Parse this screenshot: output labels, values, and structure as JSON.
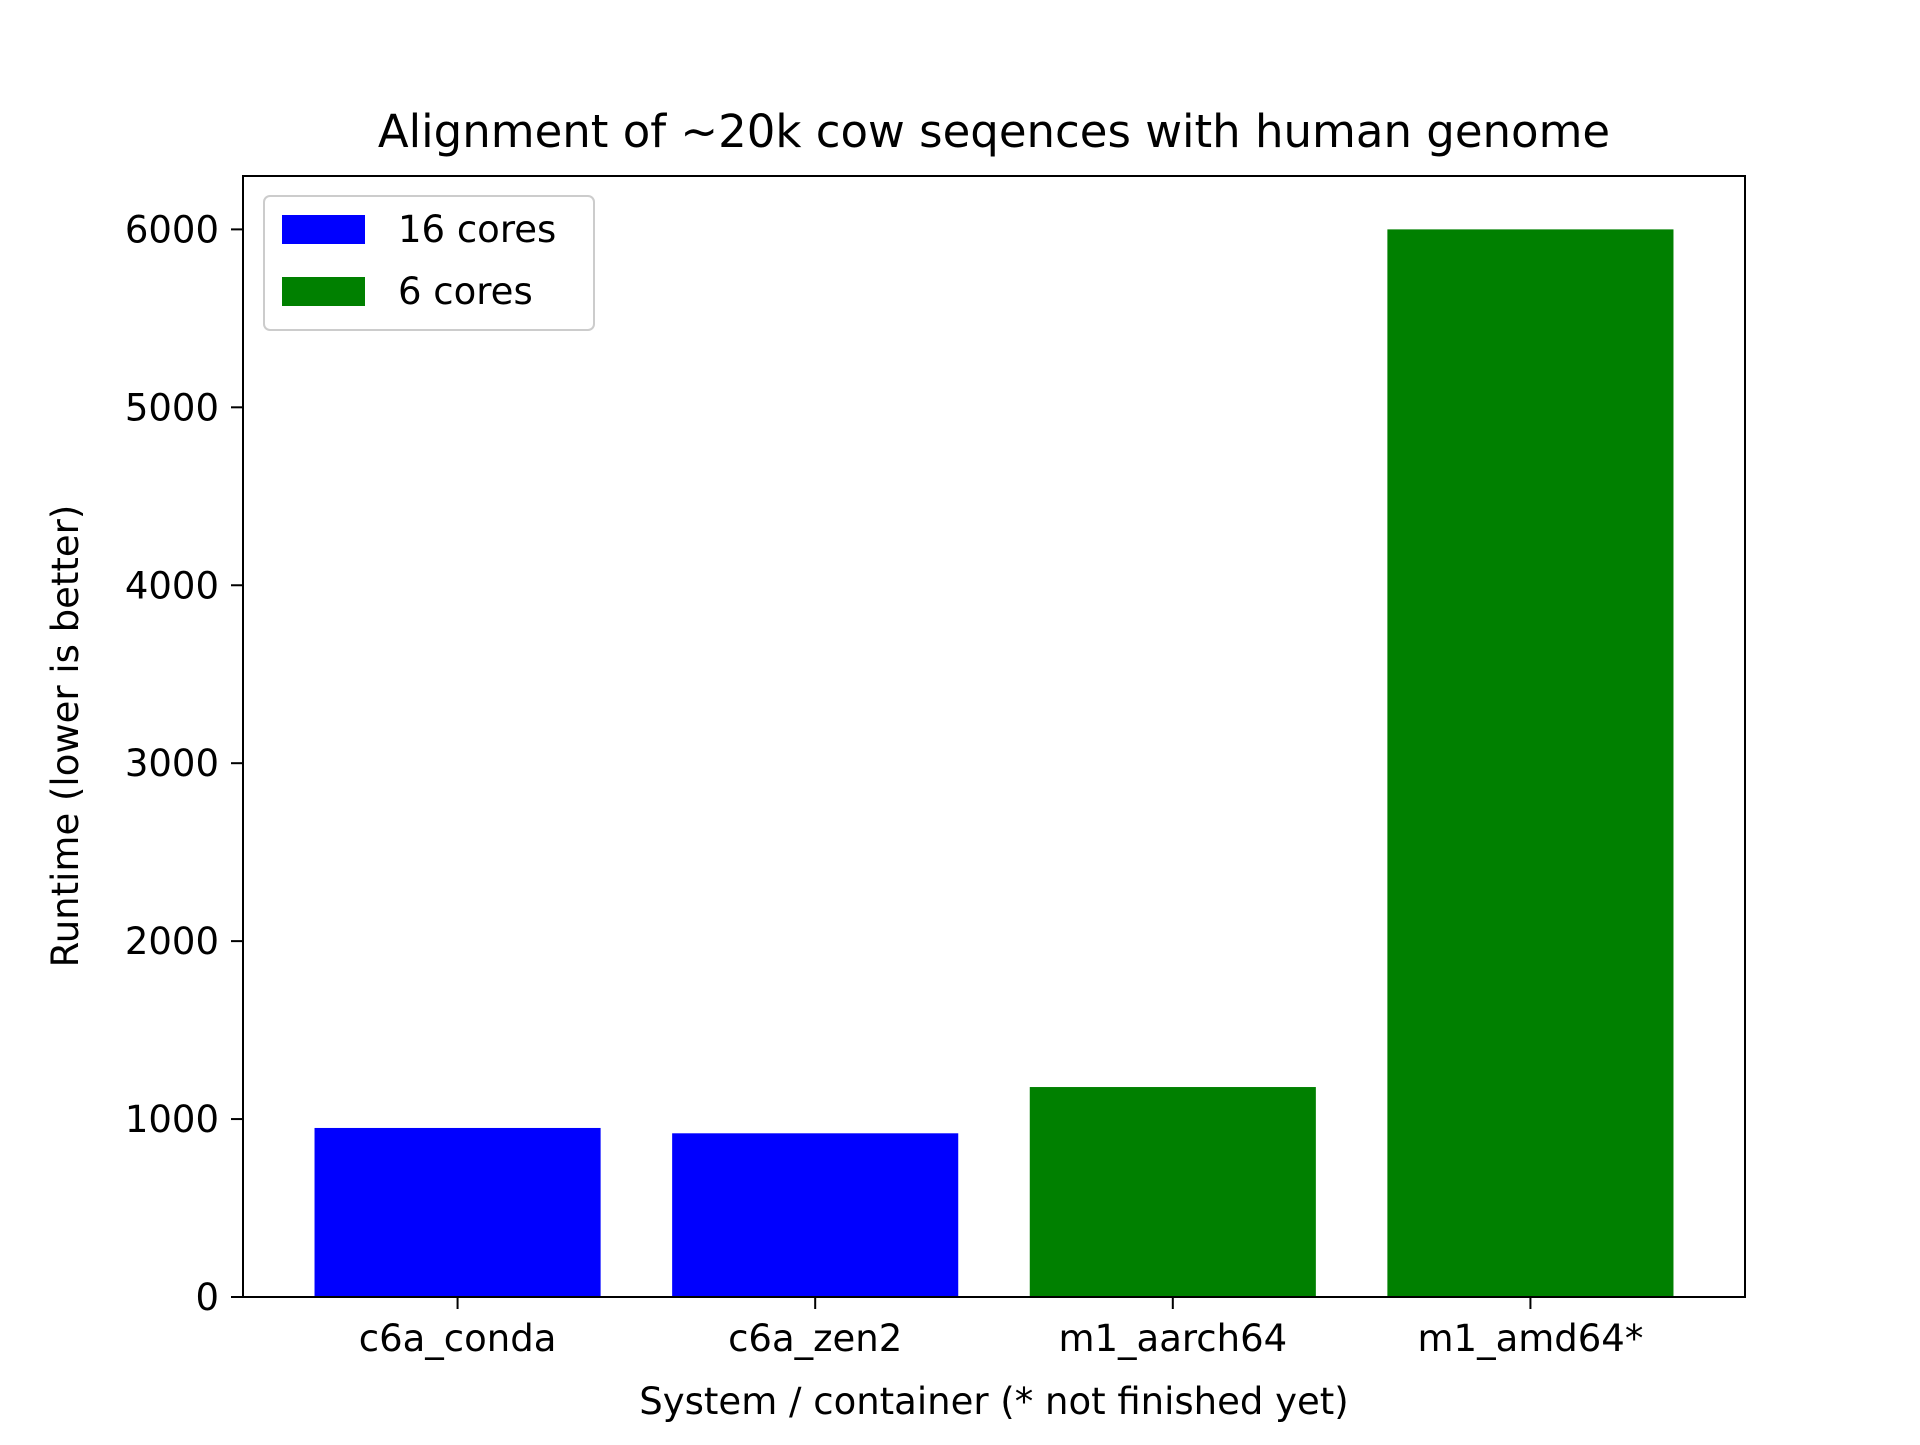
{
  "chart_data": {
    "type": "bar",
    "title": "Alignment of ~20k cow seqences with human genome",
    "xlabel": "System / container (* not finished yet)",
    "ylabel": "Runtime (lower is better)",
    "categories": [
      "c6a_conda",
      "c6a_zen2",
      "m1_aarch64",
      "m1_amd64*"
    ],
    "values": [
      950,
      920,
      1180,
      6000
    ],
    "bar_series": [
      "16 cores",
      "16 cores",
      "6 cores",
      "6 cores"
    ],
    "series": [
      {
        "name": "16 cores",
        "color": "#0000ff"
      },
      {
        "name": "6 cores",
        "color": "#008000"
      }
    ],
    "ylim": [
      0,
      6300
    ],
    "yticks": [
      0,
      1000,
      2000,
      3000,
      4000,
      5000,
      6000
    ],
    "grid": false,
    "legend_position": "top-left"
  }
}
